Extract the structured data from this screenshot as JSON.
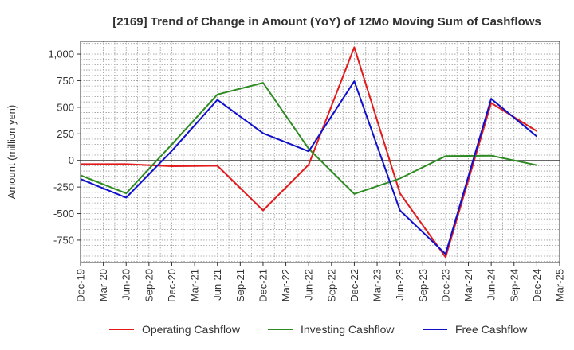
{
  "chart_data": {
    "type": "line",
    "title": "[2169]  Trend of Change in Amount (YoY) of 12Mo Moving Sum of Cashflows",
    "ylabel": "Amount (million yen)",
    "xlabel": "",
    "categories": [
      "Dec-19",
      "Mar-20",
      "Jun-20",
      "Sep-20",
      "Dec-20",
      "Mar-21",
      "Jun-21",
      "Sep-21",
      "Dec-21",
      "Mar-22",
      "Jun-22",
      "Sep-22",
      "Dec-22",
      "Mar-23",
      "Jun-23",
      "Sep-23",
      "Dec-23",
      "Mar-24",
      "Jun-24",
      "Sep-24",
      "Dec-24",
      "Mar-25"
    ],
    "ylim": [
      -960,
      1120
    ],
    "yticks": [
      -750,
      -500,
      -250,
      0,
      250,
      500,
      750,
      1000
    ],
    "ytick_labels": [
      "-750",
      "-500",
      "-250",
      "0",
      "250",
      "500",
      "750",
      "1,000"
    ],
    "grid": true,
    "legend_position": "bottom",
    "series": [
      {
        "name": "Operating Cashflow",
        "color": "#e31a1c",
        "points": [
          [
            0,
            -35
          ],
          [
            2,
            -35
          ],
          [
            4,
            -55
          ],
          [
            6,
            -50
          ],
          [
            8,
            -470
          ],
          [
            10,
            -40
          ],
          [
            12,
            1065
          ],
          [
            14,
            -310
          ],
          [
            16,
            -910
          ],
          [
            18,
            540
          ],
          [
            20,
            275
          ]
        ]
      },
      {
        "name": "Investing Cashflow",
        "color": "#2e8b22",
        "points": [
          [
            0,
            -140
          ],
          [
            2,
            -310
          ],
          [
            4,
            150
          ],
          [
            6,
            620
          ],
          [
            8,
            730
          ],
          [
            10,
            110
          ],
          [
            12,
            -315
          ],
          [
            14,
            -170
          ],
          [
            16,
            40
          ],
          [
            18,
            45
          ],
          [
            20,
            -45
          ]
        ]
      },
      {
        "name": "Free Cashflow",
        "color": "#1010cc",
        "points": [
          [
            0,
            -175
          ],
          [
            2,
            -350
          ],
          [
            4,
            90
          ],
          [
            6,
            570
          ],
          [
            8,
            255
          ],
          [
            10,
            85
          ],
          [
            12,
            745
          ],
          [
            14,
            -470
          ],
          [
            16,
            -880
          ],
          [
            18,
            580
          ],
          [
            20,
            225
          ]
        ]
      }
    ]
  }
}
